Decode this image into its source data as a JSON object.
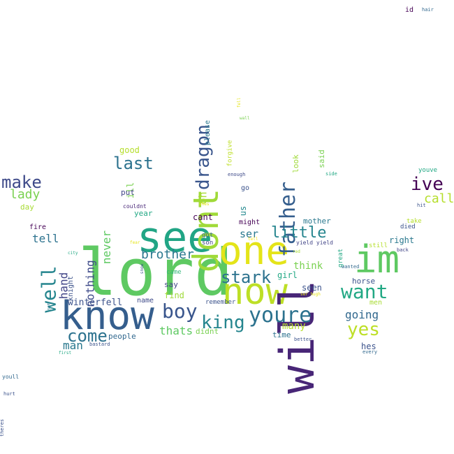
{
  "words": [
    {
      "text": "lord",
      "color": "#5ec962"
    },
    {
      "text": "know",
      "color": "#355e8d"
    },
    {
      "text": "now",
      "color": "#bddf26"
    },
    {
      "text": "one",
      "color": "#e4e419"
    },
    {
      "text": "see",
      "color": "#21a585"
    },
    {
      "text": "will",
      "color": "#482677"
    },
    {
      "text": "im",
      "color": "#5ec962"
    },
    {
      "text": "dont",
      "color": "#a0da39"
    },
    {
      "text": "youre",
      "color": "#2c728e"
    },
    {
      "text": "boy",
      "color": "#39558c"
    },
    {
      "text": "king",
      "color": "#25858e"
    },
    {
      "text": "father",
      "color": "#355e8d"
    },
    {
      "text": "dragon",
      "color": "#39558c"
    },
    {
      "text": "well",
      "color": "#25858e"
    },
    {
      "text": "stark",
      "color": "#2c728e"
    },
    {
      "text": "want",
      "color": "#22a884"
    },
    {
      "text": "yes",
      "color": "#bddf26"
    },
    {
      "text": "come",
      "color": "#2c728e"
    },
    {
      "text": "last",
      "color": "#2c728e"
    },
    {
      "text": "little",
      "color": "#25858e"
    },
    {
      "text": "ive",
      "color": "#440154"
    },
    {
      "text": "make",
      "color": "#3e4a89"
    },
    {
      "text": "brother",
      "color": "#2a788e"
    },
    {
      "text": "lady",
      "color": "#7ad151"
    },
    {
      "text": "never",
      "color": "#5ec962"
    },
    {
      "text": "call",
      "color": "#b5de2b"
    },
    {
      "text": "going",
      "color": "#31688e"
    },
    {
      "text": "man",
      "color": "#2a788e"
    },
    {
      "text": "nothing",
      "color": "#3e4a89"
    },
    {
      "text": "tell",
      "color": "#2c728e"
    },
    {
      "text": "thats",
      "color": "#5ec962"
    },
    {
      "text": "hand",
      "color": "#414487"
    },
    {
      "text": "winterfell",
      "color": "#3b528b"
    },
    {
      "text": "many",
      "color": "#b5de2b"
    },
    {
      "text": "think",
      "color": "#7ad151"
    },
    {
      "text": "seen",
      "color": "#3b528b"
    },
    {
      "text": "ser",
      "color": "#2a788e"
    },
    {
      "text": "oh",
      "color": "#a8db34"
    },
    {
      "text": "ill",
      "color": "#7ad151"
    },
    {
      "text": "good",
      "color": "#b5de2b"
    },
    {
      "text": "us",
      "color": "#23888e"
    },
    {
      "text": "hes",
      "color": "#3b528b"
    },
    {
      "text": "horse",
      "color": "#3b528b"
    },
    {
      "text": "girl",
      "color": "#22a884"
    },
    {
      "text": "right",
      "color": "#2a788e"
    },
    {
      "text": "cant",
      "color": "#440154"
    },
    {
      "text": "mother",
      "color": "#2a788e"
    },
    {
      "text": "look",
      "color": "#a0da39"
    },
    {
      "text": "said",
      "color": "#7ad151"
    },
    {
      "text": "find",
      "color": "#a0da39"
    },
    {
      "text": "say",
      "color": "#414487"
    },
    {
      "text": "year",
      "color": "#22a884"
    },
    {
      "text": "put",
      "color": "#414487"
    },
    {
      "text": "people",
      "color": "#31688e"
    },
    {
      "text": "day",
      "color": "#a8db34"
    },
    {
      "text": "name",
      "color": "#3e4a89"
    },
    {
      "text": "fire",
      "color": "#440154"
    },
    {
      "text": "time",
      "color": "#2c728e"
    },
    {
      "text": "didnt",
      "color": "#7ad151"
    },
    {
      "text": "knight",
      "color": "#3b528b"
    },
    {
      "text": "go",
      "color": "#3b528b"
    },
    {
      "text": "men",
      "color": "#a8db34"
    },
    {
      "text": "might",
      "color": "#440154"
    },
    {
      "text": "please",
      "color": "#2a788e"
    },
    {
      "text": "came",
      "color": "#35b779"
    },
    {
      "text": "remember",
      "color": "#3b528b"
    },
    {
      "text": "died",
      "color": "#3b528b"
    },
    {
      "text": "take",
      "color": "#b5de2b"
    },
    {
      "text": "still",
      "color": "#b5de2b"
    },
    {
      "text": "son",
      "color": "#414487"
    },
    {
      "text": "got",
      "color": "#31688e"
    },
    {
      "text": "great",
      "color": "#22a884"
    },
    {
      "text": "forgive",
      "color": "#bddf26"
    },
    {
      "text": "youve",
      "color": "#22a884"
    },
    {
      "text": "id",
      "color": "#440154"
    },
    {
      "text": "yield yield",
      "color": "#414487"
    },
    {
      "text": "couldnt",
      "color": "#482677"
    },
    {
      "text": "bastard",
      "color": "#3b528b"
    },
    {
      "text": "enough",
      "color": "#3e4a89"
    },
    {
      "text": "side",
      "color": "#22a884"
    },
    {
      "text": "hit",
      "color": "#3b528b"
    },
    {
      "text": "back",
      "color": "#414487"
    },
    {
      "text": "better",
      "color": "#3b528b"
    },
    {
      "text": "every",
      "color": "#31688e"
    },
    {
      "text": "wanted",
      "color": "#31688e"
    },
    {
      "text": "first",
      "color": "#22a884"
    },
    {
      "text": "city",
      "color": "#22a884"
    },
    {
      "text": "snow",
      "color": "#3b528b"
    },
    {
      "text": "sam",
      "color": "#2a788e"
    },
    {
      "text": "fear",
      "color": "#e4e419"
    },
    {
      "text": "ser hugh",
      "color": "#e4e419"
    },
    {
      "text": "shes",
      "color": "#e4e419"
    },
    {
      "text": "red",
      "color": "#a8db34"
    },
    {
      "text": "wall",
      "color": "#7ad151"
    },
    {
      "text": "hair",
      "color": "#31688e"
    },
    {
      "text": "youll",
      "color": "#31688e"
    },
    {
      "text": "hurt",
      "color": "#3b528b"
    },
    {
      "text": "theres",
      "color": "#3b528b"
    },
    {
      "text": "fell",
      "color": "#e4e419"
    },
    {
      "text": "tell",
      "color": "#fde725"
    }
  ]
}
